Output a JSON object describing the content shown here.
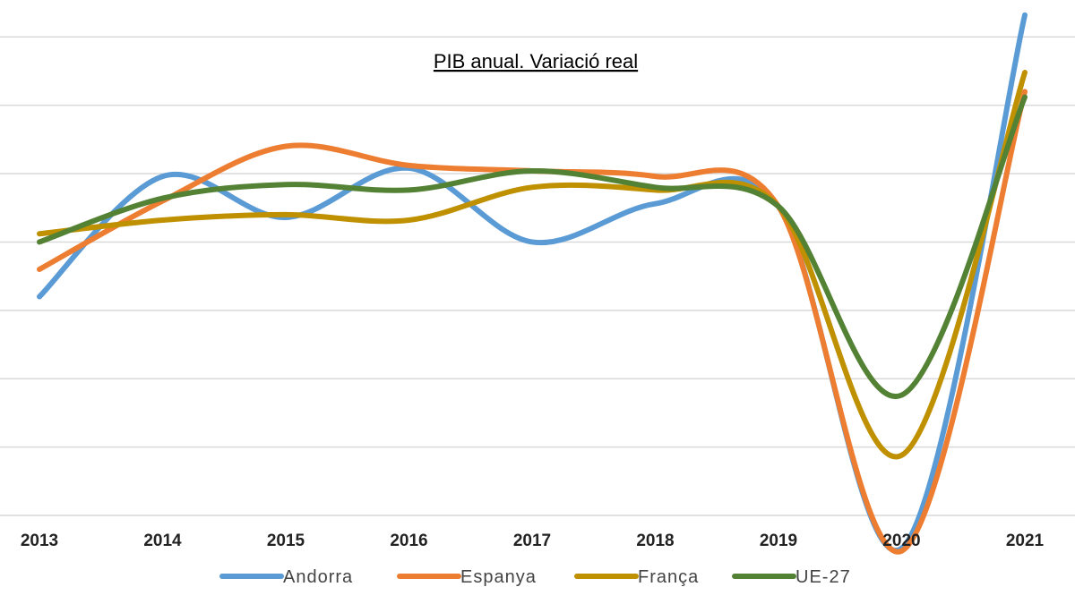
{
  "chart_data": {
    "type": "line",
    "title": "PIB anual. Variació real",
    "xlabel": "",
    "ylabel": "",
    "categories": [
      "2013",
      "2014",
      "2015",
      "2016",
      "2017",
      "2018",
      "2019",
      "2020",
      "2021"
    ],
    "ylim": [
      -10,
      8
    ],
    "grid": true,
    "legend_position": "bottom",
    "series": [
      {
        "name": "Andorra",
        "color": "#5b9bd5",
        "values": [
          -2.0,
          2.4,
          0.9,
          2.7,
          0.0,
          1.4,
          1.3,
          -11.2,
          8.3
        ]
      },
      {
        "name": "Espanya",
        "color": "#ed7d31",
        "values": [
          -1.0,
          1.5,
          3.5,
          2.8,
          2.6,
          2.4,
          1.3,
          -11.3,
          5.5
        ]
      },
      {
        "name": "França",
        "color": "#bf9000",
        "values": [
          0.3,
          0.8,
          1.0,
          0.8,
          2.0,
          1.9,
          1.3,
          -7.8,
          6.2
        ]
      },
      {
        "name": "UE-27",
        "color": "#548235",
        "values": [
          0.0,
          1.6,
          2.1,
          1.9,
          2.6,
          2.0,
          1.3,
          -5.6,
          5.3
        ]
      }
    ]
  }
}
